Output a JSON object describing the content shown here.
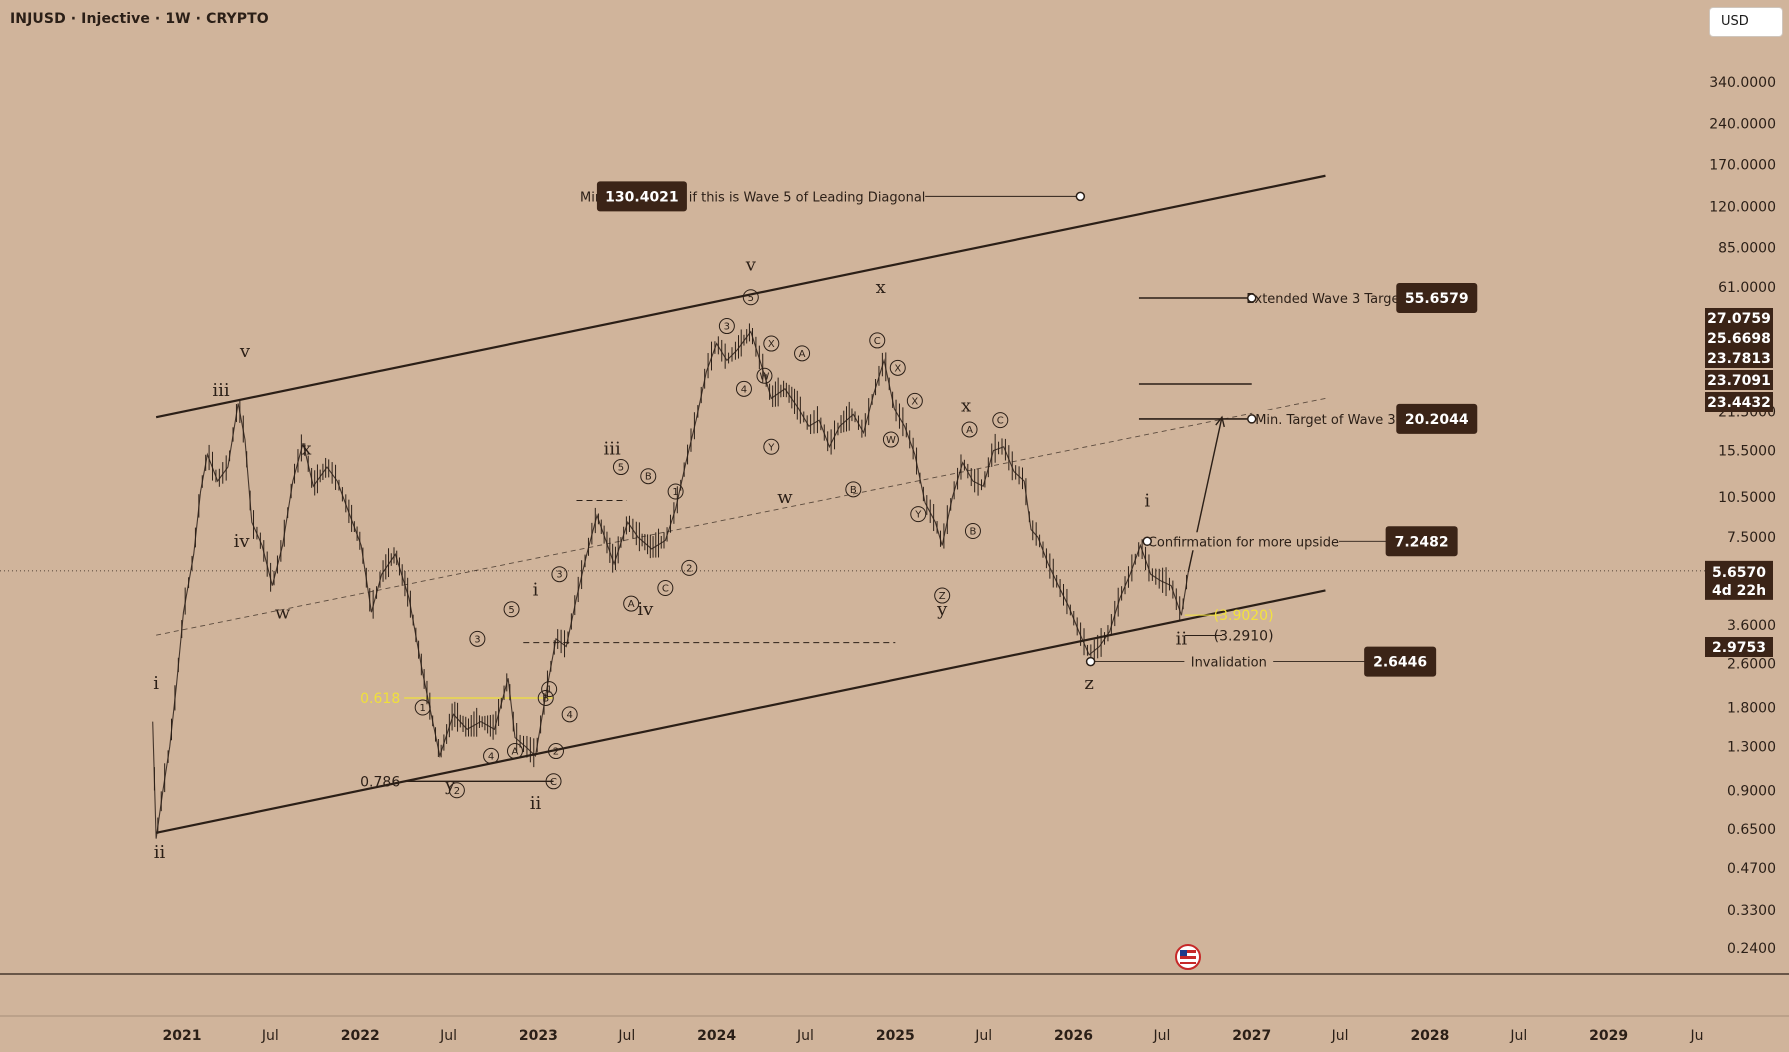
{
  "header": {
    "title": "INJUSD · Injective · 1W · CRYPTO",
    "currency_button": "USD"
  },
  "colors": {
    "background": "#d0b49b",
    "ink": "#2b1f17",
    "label_box": "#3b2417",
    "fib_yellow": "#f0e03a",
    "projection_text_yellow": "#f2e23e"
  },
  "chart_data": {
    "type": "line",
    "scale": "log",
    "ylim": [
      0.2,
      500
    ],
    "x_range": [
      "2020-08-01",
      "2029-12-31"
    ],
    "price_axis_ticks": [
      "340.0000",
      "240.0000",
      "170.0000",
      "120.0000",
      "85.0000",
      "61.0000",
      "21.5000",
      "15.5000",
      "10.5000",
      "7.5000",
      "3.6000",
      "2.6000",
      "1.8000",
      "1.3000",
      "0.9000",
      "0.6500",
      "0.4700",
      "0.3300",
      "0.2400"
    ],
    "price_axis_tick_values": [
      340,
      240,
      170,
      120,
      85,
      61,
      21.5,
      15.5,
      10.5,
      7.5,
      3.6,
      2.6,
      1.8,
      1.3,
      0.9,
      0.65,
      0.47,
      0.33,
      0.24
    ],
    "time_axis_ticks": [
      {
        "label": "2021",
        "date": "2021-01-01",
        "year": true
      },
      {
        "label": "Jul",
        "date": "2021-07-01",
        "year": false
      },
      {
        "label": "2022",
        "date": "2022-01-01",
        "year": true
      },
      {
        "label": "Jul",
        "date": "2022-07-01",
        "year": false
      },
      {
        "label": "2023",
        "date": "2023-01-01",
        "year": true
      },
      {
        "label": "Jul",
        "date": "2023-07-01",
        "year": false
      },
      {
        "label": "2024",
        "date": "2024-01-01",
        "year": true
      },
      {
        "label": "Jul",
        "date": "2024-07-01",
        "year": false
      },
      {
        "label": "2025",
        "date": "2025-01-01",
        "year": true
      },
      {
        "label": "Jul",
        "date": "2025-07-01",
        "year": false
      },
      {
        "label": "2026",
        "date": "2026-01-01",
        "year": true
      },
      {
        "label": "Jul",
        "date": "2026-07-01",
        "year": false
      },
      {
        "label": "2027",
        "date": "2027-01-01",
        "year": true
      },
      {
        "label": "Jul",
        "date": "2027-07-01",
        "year": false
      },
      {
        "label": "2028",
        "date": "2028-01-01",
        "year": true
      },
      {
        "label": "Jul",
        "date": "2028-07-01",
        "year": false
      },
      {
        "label": "2029",
        "date": "2029-01-01",
        "year": true
      },
      {
        "label": "Ju",
        "date": "2029-07-01",
        "year": false
      }
    ],
    "current_price": {
      "value": 5.657,
      "label": "5.6570",
      "countdown": "4d 22h"
    },
    "price_scale_badges": [
      {
        "label": "27.0759",
        "value": 27.0759
      },
      {
        "label": "25.6698",
        "value": 25.6698
      },
      {
        "label": "23.7813",
        "value": 23.7813
      },
      {
        "label": "23.7091",
        "value": 23.7091
      },
      {
        "label": "23.4432",
        "value": 23.4432
      },
      {
        "label": "2.9753",
        "value": 2.9753
      }
    ],
    "price_path": [
      {
        "x": "2020-11-02",
        "y": 1.6
      },
      {
        "x": "2020-11-09",
        "y": 0.6
      },
      {
        "x": "2020-11-23",
        "y": 0.9
      },
      {
        "x": "2020-12-07",
        "y": 1.3
      },
      {
        "x": "2020-12-21",
        "y": 2.2
      },
      {
        "x": "2021-01-04",
        "y": 4.0
      },
      {
        "x": "2021-01-25",
        "y": 6.5
      },
      {
        "x": "2021-02-08",
        "y": 11.0
      },
      {
        "x": "2021-02-22",
        "y": 15.0
      },
      {
        "x": "2021-03-15",
        "y": 12.0
      },
      {
        "x": "2021-04-05",
        "y": 13.5
      },
      {
        "x": "2021-04-26",
        "y": 23.0
      },
      {
        "x": "2021-05-10",
        "y": 17.0
      },
      {
        "x": "2021-05-24",
        "y": 8.5
      },
      {
        "x": "2021-06-14",
        "y": 7.0
      },
      {
        "x": "2021-07-05",
        "y": 5.0
      },
      {
        "x": "2021-07-26",
        "y": 7.0
      },
      {
        "x": "2021-08-16",
        "y": 12.0
      },
      {
        "x": "2021-09-06",
        "y": 16.5
      },
      {
        "x": "2021-09-27",
        "y": 11.5
      },
      {
        "x": "2021-10-25",
        "y": 13.5
      },
      {
        "x": "2021-11-15",
        "y": 12.0
      },
      {
        "x": "2021-12-06",
        "y": 9.5
      },
      {
        "x": "2022-01-03",
        "y": 7.0
      },
      {
        "x": "2022-01-24",
        "y": 4.0
      },
      {
        "x": "2022-02-14",
        "y": 5.5
      },
      {
        "x": "2022-03-14",
        "y": 6.5
      },
      {
        "x": "2022-04-11",
        "y": 4.5
      },
      {
        "x": "2022-05-09",
        "y": 2.4
      },
      {
        "x": "2022-06-13",
        "y": 1.2
      },
      {
        "x": "2022-07-11",
        "y": 1.7
      },
      {
        "x": "2022-08-08",
        "y": 1.5
      },
      {
        "x": "2022-09-05",
        "y": 1.6
      },
      {
        "x": "2022-10-03",
        "y": 1.5
      },
      {
        "x": "2022-10-31",
        "y": 2.3
      },
      {
        "x": "2022-11-14",
        "y": 1.4
      },
      {
        "x": "2022-12-05",
        "y": 1.3
      },
      {
        "x": "2022-12-26",
        "y": 1.2
      },
      {
        "x": "2023-01-16",
        "y": 2.0
      },
      {
        "x": "2023-02-06",
        "y": 3.2
      },
      {
        "x": "2023-02-27",
        "y": 3.0
      },
      {
        "x": "2023-03-20",
        "y": 4.5
      },
      {
        "x": "2023-04-10",
        "y": 6.5
      },
      {
        "x": "2023-05-01",
        "y": 9.0
      },
      {
        "x": "2023-06-05",
        "y": 6.0
      },
      {
        "x": "2023-07-03",
        "y": 8.5
      },
      {
        "x": "2023-07-24",
        "y": 7.5
      },
      {
        "x": "2023-08-21",
        "y": 6.8
      },
      {
        "x": "2023-09-18",
        "y": 7.3
      },
      {
        "x": "2023-10-09",
        "y": 9.5
      },
      {
        "x": "2023-10-30",
        "y": 14.0
      },
      {
        "x": "2023-11-20",
        "y": 20.0
      },
      {
        "x": "2023-12-11",
        "y": 30.0
      },
      {
        "x": "2024-01-01",
        "y": 38.0
      },
      {
        "x": "2024-01-22",
        "y": 33.0
      },
      {
        "x": "2024-02-12",
        "y": 36.0
      },
      {
        "x": "2024-03-11",
        "y": 42.0
      },
      {
        "x": "2024-04-01",
        "y": 32.0
      },
      {
        "x": "2024-04-22",
        "y": 24.0
      },
      {
        "x": "2024-05-20",
        "y": 26.0
      },
      {
        "x": "2024-06-17",
        "y": 22.0
      },
      {
        "x": "2024-07-08",
        "y": 19.0
      },
      {
        "x": "2024-07-29",
        "y": 20.0
      },
      {
        "x": "2024-08-19",
        "y": 16.0
      },
      {
        "x": "2024-09-09",
        "y": 19.0
      },
      {
        "x": "2024-10-07",
        "y": 21.0
      },
      {
        "x": "2024-10-28",
        "y": 18.0
      },
      {
        "x": "2024-11-18",
        "y": 25.0
      },
      {
        "x": "2024-12-09",
        "y": 33.0
      },
      {
        "x": "2024-12-30",
        "y": 22.0
      },
      {
        "x": "2025-01-20",
        "y": 19.0
      },
      {
        "x": "2025-02-10",
        "y": 15.0
      },
      {
        "x": "2025-03-03",
        "y": 10.0
      },
      {
        "x": "2025-03-24",
        "y": 8.5
      },
      {
        "x": "2025-04-07",
        "y": 7.0
      },
      {
        "x": "2025-04-28",
        "y": 10.5
      },
      {
        "x": "2025-05-19",
        "y": 14.0
      },
      {
        "x": "2025-06-09",
        "y": 12.0
      },
      {
        "x": "2025-06-30",
        "y": 11.5
      },
      {
        "x": "2025-07-21",
        "y": 15.5
      },
      {
        "x": "2025-08-11",
        "y": 16.0
      },
      {
        "x": "2025-09-01",
        "y": 13.0
      },
      {
        "x": "2025-09-22",
        "y": 12.0
      },
      {
        "x": "2025-10-06",
        "y": 8.0
      },
      {
        "x": "2025-10-20",
        "y": 7.5
      },
      {
        "x": "2025-11-10",
        "y": 6.0
      },
      {
        "x": "2025-12-01",
        "y": 5.0
      },
      {
        "x": "2025-12-22",
        "y": 4.2
      },
      {
        "x": "2026-01-12",
        "y": 3.4
      },
      {
        "x": "2026-02-02",
        "y": 2.8
      },
      {
        "x": "2026-02-23",
        "y": 3.0
      },
      {
        "x": "2026-03-16",
        "y": 3.4
      },
      {
        "x": "2026-04-06",
        "y": 4.5
      },
      {
        "x": "2026-04-27",
        "y": 5.5
      },
      {
        "x": "2026-05-18",
        "y": 7.0
      },
      {
        "x": "2026-06-08",
        "y": 5.5
      },
      {
        "x": "2026-06-29",
        "y": 5.2
      },
      {
        "x": "2026-07-20",
        "y": 5.0
      },
      {
        "x": "2026-08-10",
        "y": 3.9
      },
      {
        "x": "2026-08-24",
        "y": 5.6
      }
    ],
    "trendlines": [
      {
        "name": "upper-channel",
        "from": {
          "x": "2020-11-09",
          "y": 20.5
        },
        "to": {
          "x": "2027-06-01",
          "y": 155
        }
      },
      {
        "name": "lower-channel",
        "from": {
          "x": "2020-11-09",
          "y": 0.63
        },
        "to": {
          "x": "2027-06-01",
          "y": 4.8
        }
      },
      {
        "name": "mid-channel",
        "from": {
          "x": "2020-11-09",
          "y": 3.3
        },
        "to": {
          "x": "2027-06-01",
          "y": 24
        },
        "dashed": true
      },
      {
        "name": "projection-arrow",
        "from": {
          "x": "2026-08-24",
          "y": 5.6
        },
        "to": {
          "x": "2026-11-01",
          "y": 20.5
        },
        "arrow": true
      }
    ],
    "fib_levels": [
      {
        "label": "0.618",
        "value": 1.95,
        "color": "yellow",
        "from": "2022-04-01",
        "to": "2023-02-01"
      },
      {
        "label": "0.786",
        "value": 0.97,
        "color": "dark",
        "from": "2022-04-01",
        "to": "2023-02-01"
      }
    ],
    "horizontal_lines": [
      {
        "value": 3.1,
        "from": "2022-12-01",
        "to": "2025-01-01",
        "dashed": true
      },
      {
        "value": 10.2,
        "from": "2023-03-20",
        "to": "2023-07-01",
        "dashed": true
      },
      {
        "value": 55.6579,
        "from": "2026-05-15",
        "to": "2027-01-01"
      },
      {
        "value": 27.0759,
        "from": "2026-05-15",
        "to": "2027-01-01"
      },
      {
        "value": 20.2044,
        "from": "2026-05-15",
        "to": "2027-01-01"
      }
    ],
    "projection_notes": [
      {
        "text": "(3.9020)",
        "value": 3.902,
        "color": "yellow",
        "at": "2026-10-15"
      },
      {
        "text": "(3.2910)",
        "value": 3.291,
        "color": "dark",
        "at": "2026-10-15"
      }
    ],
    "annotations": [
      {
        "text": "Minimum Target if this is Wave 5 of Leading Diagonal",
        "box": "130.4021",
        "value": 130.4021,
        "box_date": "2023-08-01",
        "text_date": "2024-03-15",
        "dot_date": "2026-01-15"
      },
      {
        "text": "Extended Wave 3 Target",
        "box": "55.6579",
        "value": 55.6579,
        "dot_date": "2027-01-01",
        "text_date": "2027-06-01",
        "box_date": "2028-01-15"
      },
      {
        "text": "Min. Target of Wave 3",
        "box": "20.2044",
        "value": 20.2044,
        "dot_date": "2027-01-01",
        "text_date": "2027-06-01",
        "box_date": "2028-01-15"
      },
      {
        "text": "Confirmation for more upside",
        "box": "7.2482",
        "value": 7.2482,
        "dot_date": "2026-06-01",
        "text_date": "2026-12-15",
        "box_date": "2027-12-15"
      },
      {
        "text": "Invalidation",
        "box": "2.6446",
        "value": 2.6446,
        "dot_date": "2026-02-05",
        "text_date": "2026-11-15",
        "box_date": "2027-11-01"
      }
    ],
    "wave_labels": [
      {
        "text": "i",
        "x": "2020-11-09",
        "y": 2.1
      },
      {
        "text": "ii",
        "x": "2020-11-16",
        "y": 0.51
      },
      {
        "text": "iii",
        "x": "2021-03-22",
        "y": 24.5
      },
      {
        "text": "v",
        "x": "2021-05-10",
        "y": 34
      },
      {
        "text": "iv",
        "x": "2021-05-03",
        "y": 6.9
      },
      {
        "text": "w",
        "x": "2021-07-26",
        "y": 3.8
      },
      {
        "text": "x",
        "x": "2021-09-13",
        "y": 15.0
      },
      {
        "text": "y",
        "x": "2022-07-04",
        "y": 0.9
      },
      {
        "text": "i",
        "x": "2022-12-26",
        "y": 4.6
      },
      {
        "text": "ii",
        "x": "2022-12-26",
        "y": 0.77
      },
      {
        "text": "iii",
        "x": "2023-06-01",
        "y": 15.0
      },
      {
        "text": "iv",
        "x": "2023-08-08",
        "y": 3.9
      },
      {
        "text": "v",
        "x": "2024-03-11",
        "y": 70
      },
      {
        "text": "w",
        "x": "2024-05-20",
        "y": 10.0
      },
      {
        "text": "x",
        "x": "2024-12-02",
        "y": 58
      },
      {
        "text": "y",
        "x": "2025-04-07",
        "y": 3.9
      },
      {
        "text": "x",
        "x": "2025-05-26",
        "y": 21.5
      },
      {
        "text": "z",
        "x": "2026-02-02",
        "y": 2.1
      },
      {
        "text": "i",
        "x": "2026-06-01",
        "y": 9.7
      },
      {
        "text": "ii",
        "x": "2026-08-10",
        "y": 3.05
      }
    ],
    "circle_labels": [
      {
        "text": "1",
        "x": "2022-05-09",
        "y": 1.8
      },
      {
        "text": "2",
        "x": "2022-07-18",
        "y": 0.9
      },
      {
        "text": "3",
        "x": "2022-08-29",
        "y": 3.2
      },
      {
        "text": "4",
        "x": "2022-09-26",
        "y": 1.2
      },
      {
        "text": "5",
        "x": "2022-11-07",
        "y": 4.1
      },
      {
        "text": "A",
        "x": "2022-11-14",
        "y": 1.25
      },
      {
        "text": "B",
        "x": "2023-01-16",
        "y": 1.95
      },
      {
        "text": "C",
        "x": "2023-02-01",
        "y": 0.97
      },
      {
        "text": "1",
        "x": "2023-01-23",
        "y": 2.1
      },
      {
        "text": "2",
        "x": "2023-02-06",
        "y": 1.25
      },
      {
        "text": "3",
        "x": "2023-02-13",
        "y": 5.5
      },
      {
        "text": "4",
        "x": "2023-03-06",
        "y": 1.7
      },
      {
        "text": "5",
        "x": "2023-06-19",
        "y": 13.5
      },
      {
        "text": "A",
        "x": "2023-07-10",
        "y": 4.3
      },
      {
        "text": "B",
        "x": "2023-08-14",
        "y": 12.5
      },
      {
        "text": "C",
        "x": "2023-09-18",
        "y": 4.9
      },
      {
        "text": "1",
        "x": "2023-10-09",
        "y": 11.0
      },
      {
        "text": "2",
        "x": "2023-11-06",
        "y": 5.8
      },
      {
        "text": "3",
        "x": "2024-01-22",
        "y": 44
      },
      {
        "text": "4",
        "x": "2024-02-26",
        "y": 26
      },
      {
        "text": "5",
        "x": "2024-03-11",
        "y": 56
      },
      {
        "text": "X",
        "x": "2024-04-22",
        "y": 38
      },
      {
        "text": "W",
        "x": "2024-04-08",
        "y": 29
      },
      {
        "text": "Y",
        "x": "2024-04-22",
        "y": 16.0
      },
      {
        "text": "A",
        "x": "2024-06-24",
        "y": 35
      },
      {
        "text": "B",
        "x": "2024-10-07",
        "y": 11.2
      },
      {
        "text": "C",
        "x": "2024-11-25",
        "y": 39
      },
      {
        "text": "X",
        "x": "2025-01-06",
        "y": 31
      },
      {
        "text": "W",
        "x": "2024-12-23",
        "y": 17.0
      },
      {
        "text": "X",
        "x": "2025-02-10",
        "y": 23.5
      },
      {
        "text": "Y",
        "x": "2025-02-17",
        "y": 9.1
      },
      {
        "text": "Z",
        "x": "2025-04-07",
        "y": 4.6
      },
      {
        "text": "A",
        "x": "2025-06-02",
        "y": 18.5
      },
      {
        "text": "B",
        "x": "2025-06-09",
        "y": 7.9
      },
      {
        "text": "C",
        "x": "2025-08-04",
        "y": 20.0
      }
    ]
  }
}
